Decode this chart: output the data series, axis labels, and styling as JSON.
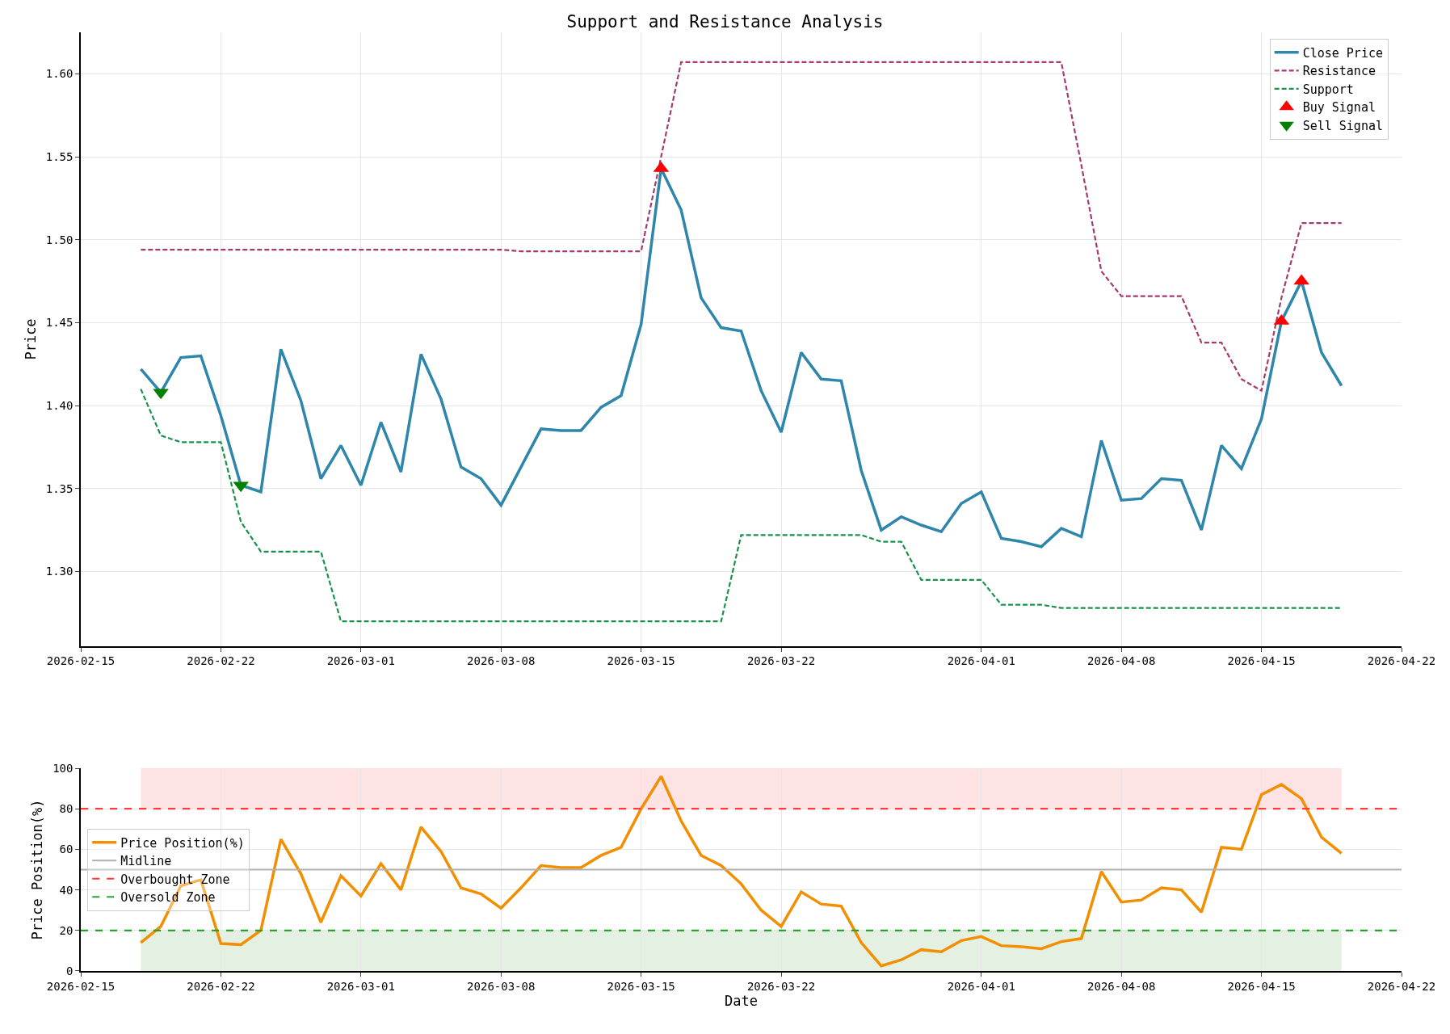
{
  "chart_data": [
    {
      "type": "line",
      "title": "Support and Resistance Analysis",
      "ylabel": "Price",
      "x": [
        "2026-02-18",
        "2026-02-19",
        "2026-02-20",
        "2026-02-21",
        "2026-02-22",
        "2026-02-23",
        "2026-02-24",
        "2026-02-25",
        "2026-02-26",
        "2026-02-27",
        "2026-02-28",
        "2026-03-01",
        "2026-03-02",
        "2026-03-03",
        "2026-03-04",
        "2026-03-05",
        "2026-03-06",
        "2026-03-07",
        "2026-03-08",
        "2026-03-09",
        "2026-03-10",
        "2026-03-11",
        "2026-03-12",
        "2026-03-13",
        "2026-03-14",
        "2026-03-15",
        "2026-03-16",
        "2026-03-17",
        "2026-03-18",
        "2026-03-19",
        "2026-03-20",
        "2026-03-21",
        "2026-03-22",
        "2026-03-23",
        "2026-03-24",
        "2026-03-25",
        "2026-03-26",
        "2026-03-27",
        "2026-03-28",
        "2026-03-29",
        "2026-03-30",
        "2026-03-31",
        "2026-04-01",
        "2026-04-02",
        "2026-04-03",
        "2026-04-04",
        "2026-04-05",
        "2026-04-06",
        "2026-04-07",
        "2026-04-08",
        "2026-04-09",
        "2026-04-10",
        "2026-04-11",
        "2026-04-12",
        "2026-04-13",
        "2026-04-14",
        "2026-04-15",
        "2026-04-16",
        "2026-04-17",
        "2026-04-18",
        "2026-04-19"
      ],
      "series": [
        {
          "name": "Close Price",
          "color": "#2e86ab",
          "line_style": "solid",
          "values": [
            1.422,
            1.408,
            1.429,
            1.43,
            1.394,
            1.352,
            1.348,
            1.434,
            1.403,
            1.356,
            1.376,
            1.352,
            1.39,
            1.36,
            1.431,
            1.404,
            1.363,
            1.356,
            1.34,
            1.363,
            1.386,
            1.385,
            1.385,
            1.399,
            1.406,
            1.449,
            1.543,
            1.518,
            1.465,
            1.447,
            1.445,
            1.409,
            1.384,
            1.432,
            1.416,
            1.415,
            1.361,
            1.325,
            1.333,
            1.328,
            1.324,
            1.341,
            1.348,
            1.32,
            1.318,
            1.315,
            1.326,
            1.321,
            1.379,
            1.343,
            1.344,
            1.356,
            1.355,
            1.325,
            1.376,
            1.362,
            1.392,
            1.451,
            1.475,
            1.432,
            1.412
          ]
        },
        {
          "name": "Resistance",
          "color": "#a23b72",
          "line_style": "dashed",
          "values": [
            1.494,
            1.494,
            1.494,
            1.494,
            1.494,
            1.494,
            1.494,
            1.494,
            1.494,
            1.494,
            1.494,
            1.494,
            1.494,
            1.494,
            1.494,
            1.494,
            1.494,
            1.494,
            1.494,
            1.493,
            1.493,
            1.493,
            1.493,
            1.493,
            1.493,
            1.493,
            1.55,
            1.607,
            1.607,
            1.607,
            1.607,
            1.607,
            1.607,
            1.607,
            1.607,
            1.607,
            1.607,
            1.607,
            1.607,
            1.607,
            1.607,
            1.607,
            1.607,
            1.607,
            1.607,
            1.607,
            1.607,
            1.545,
            1.481,
            1.466,
            1.466,
            1.466,
            1.466,
            1.438,
            1.438,
            1.416,
            1.409,
            1.465,
            1.51,
            1.51,
            1.51
          ]
        },
        {
          "name": "Support",
          "color": "#18914a",
          "line_style": "dashed",
          "values": [
            1.41,
            1.382,
            1.378,
            1.378,
            1.378,
            1.33,
            1.312,
            1.312,
            1.312,
            1.312,
            1.27,
            1.27,
            1.27,
            1.27,
            1.27,
            1.27,
            1.27,
            1.27,
            1.27,
            1.27,
            1.27,
            1.27,
            1.27,
            1.27,
            1.27,
            1.27,
            1.27,
            1.27,
            1.27,
            1.27,
            1.322,
            1.322,
            1.322,
            1.322,
            1.322,
            1.322,
            1.322,
            1.318,
            1.318,
            1.295,
            1.295,
            1.295,
            1.295,
            1.28,
            1.28,
            1.28,
            1.278,
            1.278,
            1.278,
            1.278,
            1.278,
            1.278,
            1.278,
            1.278,
            1.278,
            1.278,
            1.278,
            1.278,
            1.278,
            1.278,
            1.278
          ]
        },
        {
          "name": "Buy Signal",
          "type": "scatter",
          "marker": "triangle",
          "color": "#ff0000",
          "x": [
            "2026-03-16",
            "2026-04-16",
            "2026-04-17"
          ],
          "values": [
            1.543,
            1.451,
            1.475
          ]
        },
        {
          "name": "Sell Signal",
          "type": "scatter",
          "marker": "triangle-down",
          "color": "#008000",
          "x": [
            "2026-02-19",
            "2026-02-23"
          ],
          "values": [
            1.408,
            1.352
          ]
        }
      ],
      "xlim": [
        "2026-02-15",
        "2026-04-22"
      ],
      "xticks": [
        "2026-02-15",
        "2026-02-22",
        "2026-03-01",
        "2026-03-08",
        "2026-03-15",
        "2026-03-22",
        "2026-04-01",
        "2026-04-08",
        "2026-04-15",
        "2026-04-22"
      ],
      "ylim": [
        1.255,
        1.625
      ],
      "yticks": [
        {
          "value": 1.3,
          "label": "1.30"
        },
        {
          "value": 1.35,
          "label": "1.35"
        },
        {
          "value": 1.4,
          "label": "1.40"
        },
        {
          "value": 1.45,
          "label": "1.45"
        },
        {
          "value": 1.5,
          "label": "1.50"
        },
        {
          "value": 1.55,
          "label": "1.55"
        },
        {
          "value": 1.6,
          "label": "1.60"
        }
      ],
      "grid": true,
      "legend": "top right"
    },
    {
      "type": "line",
      "xlabel": "Date",
      "ylabel": "Price Position(%)",
      "x": [
        "2026-02-18",
        "2026-02-19",
        "2026-02-20",
        "2026-02-21",
        "2026-02-22",
        "2026-02-23",
        "2026-02-24",
        "2026-02-25",
        "2026-02-26",
        "2026-02-27",
        "2026-02-28",
        "2026-03-01",
        "2026-03-02",
        "2026-03-03",
        "2026-03-04",
        "2026-03-05",
        "2026-03-06",
        "2026-03-07",
        "2026-03-08",
        "2026-03-09",
        "2026-03-10",
        "2026-03-11",
        "2026-03-12",
        "2026-03-13",
        "2026-03-14",
        "2026-03-15",
        "2026-03-16",
        "2026-03-17",
        "2026-03-18",
        "2026-03-19",
        "2026-03-20",
        "2026-03-21",
        "2026-03-22",
        "2026-03-23",
        "2026-03-24",
        "2026-03-25",
        "2026-03-26",
        "2026-03-27",
        "2026-03-28",
        "2026-03-29",
        "2026-03-30",
        "2026-03-31",
        "2026-04-01",
        "2026-04-02",
        "2026-04-03",
        "2026-04-04",
        "2026-04-05",
        "2026-04-06",
        "2026-04-07",
        "2026-04-08",
        "2026-04-09",
        "2026-04-10",
        "2026-04-11",
        "2026-04-12",
        "2026-04-13",
        "2026-04-14",
        "2026-04-15",
        "2026-04-16",
        "2026-04-17",
        "2026-04-18",
        "2026-04-19"
      ],
      "series": [
        {
          "name": "Price Position(%)",
          "color": "#f18f01",
          "line_style": "solid",
          "values": [
            14,
            22,
            42,
            45,
            13.5,
            13,
            20,
            65,
            48,
            24,
            47,
            37,
            53,
            40,
            71,
            59,
            41,
            38,
            31,
            41,
            52,
            51,
            51,
            57,
            61,
            80,
            96,
            74,
            57,
            52,
            43,
            30,
            22,
            39,
            33,
            32,
            14,
            2.5,
            5.5,
            10.5,
            9.5,
            15,
            17,
            12.5,
            12,
            11,
            14.5,
            16,
            49,
            34,
            35,
            41,
            40,
            29,
            61,
            60,
            87,
            92,
            85,
            66,
            58
          ]
        }
      ],
      "ref_lines": [
        {
          "axis": "y",
          "value": 50,
          "label": "Midline",
          "color": "#b0b0b0",
          "line_style": "solid"
        },
        {
          "axis": "y",
          "value": 80,
          "label": "Overbought Zone",
          "color": "#ff3b3b",
          "line_style": "dashed"
        },
        {
          "axis": "y",
          "value": 20,
          "label": "Oversold Zone",
          "color": "#2ca02c",
          "line_style": "dashed"
        }
      ],
      "bands": [
        {
          "axis": "y",
          "from": 80,
          "to": 100,
          "color": "#fde3e3"
        },
        {
          "axis": "y",
          "from": 0,
          "to": 20,
          "color": "#e4f0e2"
        }
      ],
      "xlim": [
        "2026-02-15",
        "2026-04-22"
      ],
      "xticks": [
        "2026-02-15",
        "2026-02-22",
        "2026-03-01",
        "2026-03-08",
        "2026-03-15",
        "2026-03-22",
        "2026-04-01",
        "2026-04-08",
        "2026-04-15",
        "2026-04-22"
      ],
      "ylim": [
        0,
        100
      ],
      "yticks": [
        0,
        20,
        40,
        60,
        80,
        100
      ],
      "grid": true,
      "legend": "left"
    }
  ]
}
